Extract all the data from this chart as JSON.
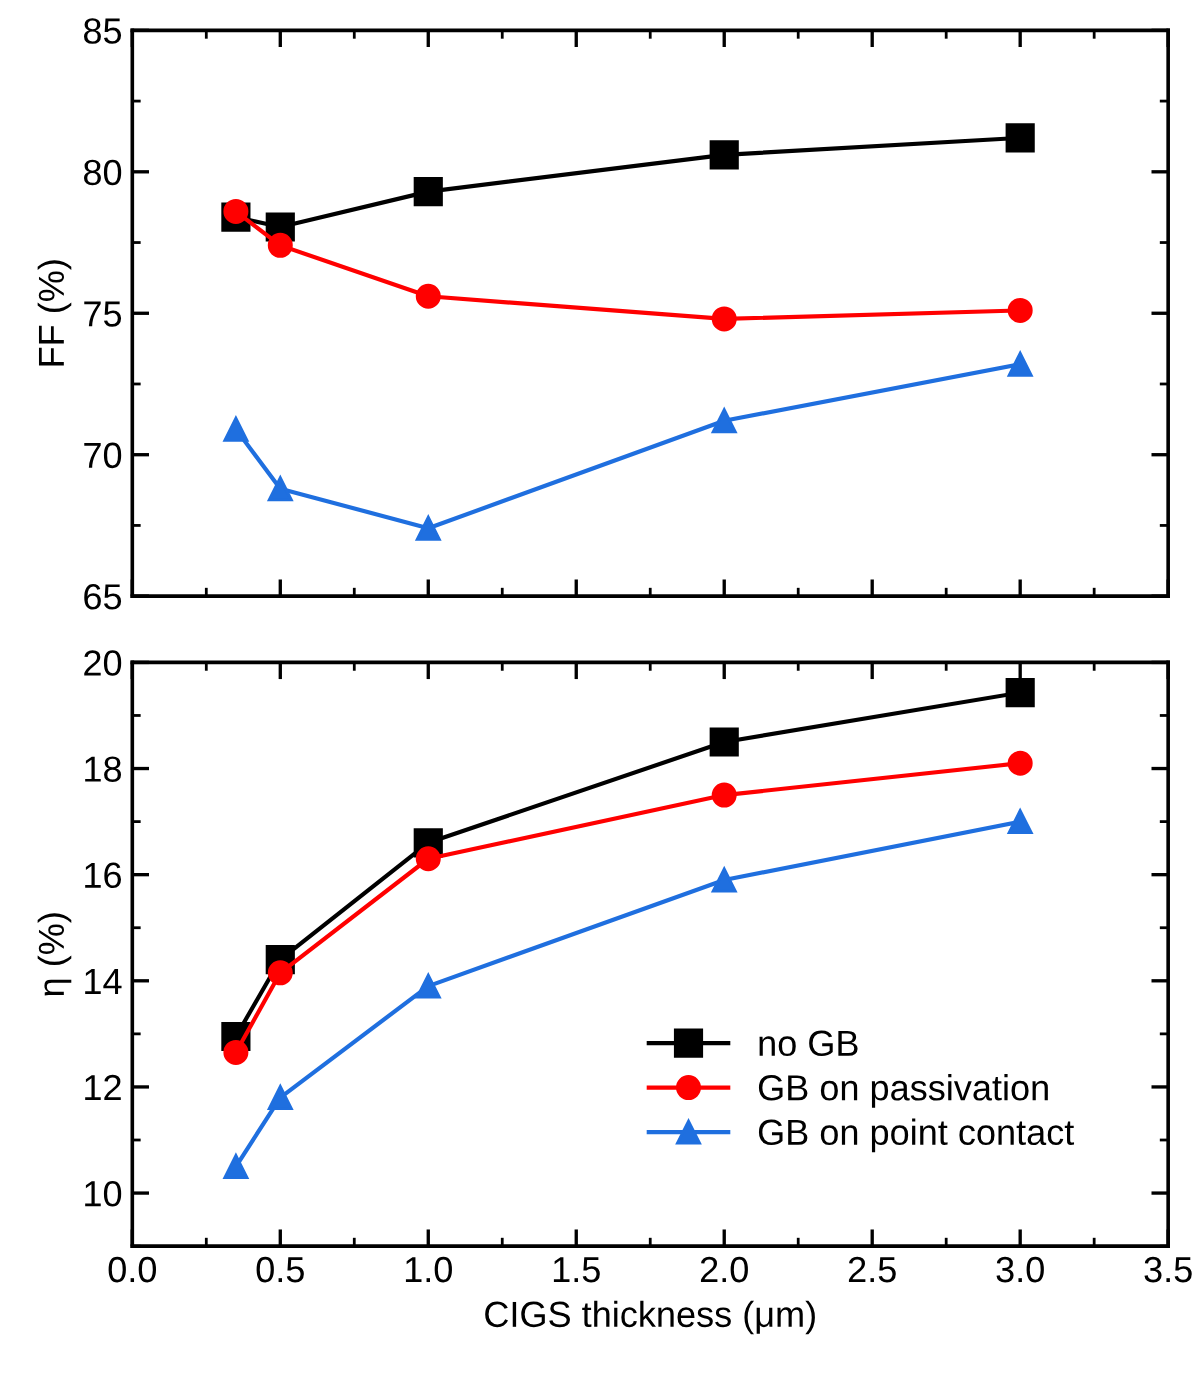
{
  "chart_data": [
    {
      "type": "line",
      "ylabel": "FF (%)",
      "x": [
        0.35,
        0.5,
        1.0,
        2.0,
        3.0
      ],
      "xlim": [
        0,
        3.5
      ],
      "ylim": [
        65,
        85
      ],
      "xticks": [
        {
          "value": 0,
          "label": null
        },
        {
          "value": 0.5,
          "label": null
        },
        {
          "value": 1.0,
          "label": null
        },
        {
          "value": 1.5,
          "label": null
        },
        {
          "value": 2.0,
          "label": null
        },
        {
          "value": 2.5,
          "label": null
        },
        {
          "value": 3.0,
          "label": null
        },
        {
          "value": 3.5,
          "label": null
        }
      ],
      "yticks": [
        65,
        70,
        75,
        80,
        85
      ],
      "tick_labels": "y",
      "legend": false,
      "grid": false,
      "line_style": "solid",
      "series": [
        {
          "color": "#000000",
          "marker": "square",
          "values": [
            78.4,
            78.05,
            79.3,
            80.6,
            81.2
          ]
        },
        {
          "color": "#ff0000",
          "marker": "circle",
          "values": [
            78.6,
            77.4,
            75.6,
            74.8,
            75.1
          ]
        },
        {
          "color": "#1f6fdf",
          "marker": "triangle",
          "values": [
            70.9,
            68.8,
            67.4,
            71.2,
            73.2
          ]
        }
      ]
    },
    {
      "type": "line",
      "xlabel": "CIGS thickness (μm)",
      "ylabel": "η (%)",
      "x": [
        0.35,
        0.5,
        1.0,
        2.0,
        3.0
      ],
      "xlim": [
        0,
        3.5
      ],
      "ylim": [
        9,
        20
      ],
      "xticks": [
        {
          "value": 0,
          "label": "0.0"
        },
        0.5,
        {
          "value": 1.0,
          "label": "1.0"
        },
        1.5,
        {
          "value": 2.0,
          "label": "2.0"
        },
        2.5,
        {
          "value": 3.0,
          "label": "3.0"
        },
        3.5
      ],
      "yticks": [
        10,
        12,
        14,
        16,
        18,
        20
      ],
      "legend": "bottom right",
      "grid": false,
      "line_style": "solid",
      "series": [
        {
          "name": "no GB",
          "color": "#000000",
          "marker": "square",
          "values": [
            12.95,
            14.4,
            16.6,
            18.5,
            19.43
          ]
        },
        {
          "name": "GB on passivation",
          "color": "#ff0000",
          "marker": "circle",
          "values": [
            12.65,
            14.15,
            16.3,
            17.5,
            18.1
          ]
        },
        {
          "name": "GB on point contact",
          "color": "#1f6fdf",
          "marker": "triangle",
          "values": [
            10.5,
            11.8,
            13.9,
            15.9,
            17.0
          ]
        }
      ]
    }
  ]
}
